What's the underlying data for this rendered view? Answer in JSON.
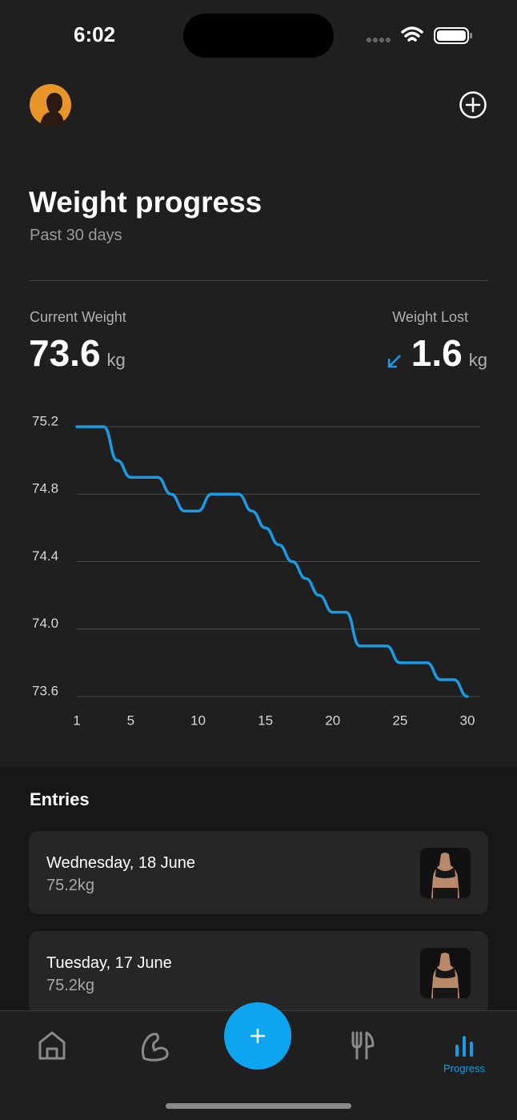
{
  "status_bar": {
    "time": "6:02"
  },
  "header": {
    "title": "Weight progress",
    "subtitle": "Past 30 days"
  },
  "stats": {
    "current": {
      "label": "Current Weight",
      "value": 73.6,
      "unit": "kg"
    },
    "lost": {
      "label": "Weight Lost",
      "value": 1.6,
      "unit": "kg"
    }
  },
  "chart_data": {
    "type": "line",
    "x": [
      1,
      2,
      3,
      4,
      5,
      6,
      7,
      8,
      9,
      10,
      11,
      12,
      13,
      14,
      15,
      16,
      17,
      18,
      19,
      20,
      21,
      22,
      23,
      24,
      25,
      26,
      27,
      28,
      29,
      30
    ],
    "values": [
      75.2,
      75.2,
      75.2,
      75.0,
      74.9,
      74.9,
      74.9,
      74.8,
      74.7,
      74.7,
      74.8,
      74.8,
      74.8,
      74.7,
      74.6,
      74.5,
      74.4,
      74.3,
      74.2,
      74.1,
      74.1,
      73.9,
      73.9,
      73.9,
      73.8,
      73.8,
      73.8,
      73.7,
      73.7,
      73.6
    ],
    "color": "#1a9be3",
    "xlim": [
      1,
      30
    ],
    "xticks": [
      1,
      5,
      10,
      15,
      20,
      25,
      30
    ],
    "ylim": [
      73.6,
      75.2
    ],
    "yticks": [
      {
        "value": 75.2,
        "label": "75.2"
      },
      {
        "value": 74.8,
        "label": "74.8"
      },
      {
        "value": 74.4,
        "label": "74.4"
      },
      {
        "value": 74.0,
        "label": "74.0"
      },
      {
        "value": 73.6,
        "label": "73.6"
      }
    ],
    "grid": true
  },
  "entries": {
    "title": "Entries",
    "items": [
      {
        "date": "Wednesday, 18 June",
        "weight": "75.2kg"
      },
      {
        "date": "Tuesday, 17 June",
        "weight": "75.2kg"
      }
    ]
  },
  "nav": {
    "active_label": "Progress"
  }
}
